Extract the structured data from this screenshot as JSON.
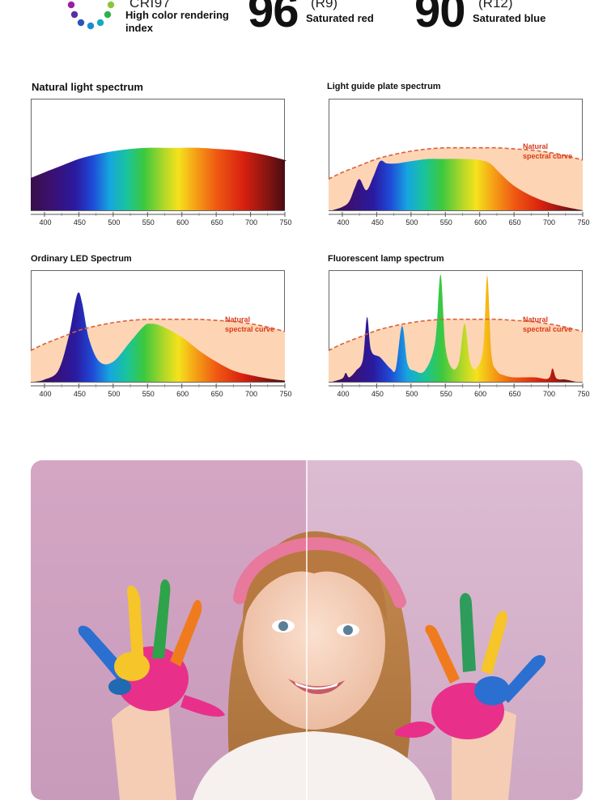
{
  "stats": {
    "cri": {
      "title": "CRI97",
      "label": "High color rendering index"
    },
    "r9": {
      "value": "96",
      "code": "(R9)",
      "label": "Saturated red"
    },
    "r12": {
      "value": "90",
      "code": "(R12)",
      "label": "Saturated blue"
    }
  },
  "colors": {
    "natural_fill": "#fdd5b4",
    "natural_curve": "#d9603a",
    "annotation": "#d93a1a",
    "photo_bg_left": "#d6a9c7",
    "photo_bg_right": "#d9b8cf"
  },
  "chart_data": [
    {
      "type": "area",
      "title": "Natural light spectrum",
      "x": [
        400,
        425,
        450,
        475,
        500,
        525,
        550,
        575,
        600,
        625,
        650,
        675,
        700,
        725,
        750
      ],
      "ylim": [
        0,
        1
      ],
      "xlim": [
        380,
        750
      ],
      "xticks": [
        400,
        450,
        500,
        550,
        600,
        650,
        700,
        750
      ],
      "series": [
        {
          "values": [
            0.34,
            0.4,
            0.46,
            0.5,
            0.53,
            0.55,
            0.56,
            0.56,
            0.56,
            0.56,
            0.55,
            0.54,
            0.52,
            0.49,
            0.45
          ]
        }
      ],
      "annotation": ""
    },
    {
      "type": "area",
      "title": "Light guide plate spectrum",
      "x": [
        385,
        400,
        410,
        418,
        425,
        435,
        445,
        455,
        465,
        480,
        500,
        525,
        550,
        575,
        600,
        615,
        630,
        650,
        675,
        700,
        725,
        750
      ],
      "ylim": [
        0,
        1
      ],
      "xlim": [
        380,
        750
      ],
      "xticks": [
        400,
        450,
        500,
        550,
        600,
        650,
        700,
        750
      ],
      "series": [
        {
          "values": [
            0.0,
            0.03,
            0.08,
            0.2,
            0.28,
            0.18,
            0.3,
            0.44,
            0.42,
            0.42,
            0.44,
            0.46,
            0.46,
            0.46,
            0.45,
            0.42,
            0.33,
            0.22,
            0.13,
            0.07,
            0.03,
            0.0
          ]
        }
      ],
      "natural_curve": [
        0.34,
        0.4,
        0.46,
        0.5,
        0.53,
        0.55,
        0.56,
        0.56,
        0.56,
        0.56,
        0.55,
        0.54,
        0.52,
        0.49,
        0.45
      ],
      "annotation": "Natural spectral curve"
    },
    {
      "type": "area",
      "title": "Ordinary LED Spectrum",
      "x": [
        385,
        400,
        420,
        435,
        445,
        450,
        455,
        465,
        480,
        500,
        525,
        545,
        555,
        570,
        600,
        625,
        650,
        675,
        700,
        725,
        750
      ],
      "ylim": [
        0,
        1
      ],
      "xlim": [
        380,
        750
      ],
      "xticks": [
        400,
        450,
        500,
        550,
        600,
        650,
        700,
        750
      ],
      "series": [
        {
          "values": [
            0.0,
            0.02,
            0.1,
            0.4,
            0.72,
            0.8,
            0.7,
            0.38,
            0.18,
            0.18,
            0.36,
            0.5,
            0.52,
            0.5,
            0.4,
            0.28,
            0.18,
            0.1,
            0.06,
            0.03,
            0.01
          ]
        }
      ],
      "natural_curve": [
        0.34,
        0.4,
        0.46,
        0.5,
        0.53,
        0.55,
        0.56,
        0.56,
        0.56,
        0.56,
        0.55,
        0.54,
        0.52,
        0.49,
        0.45
      ],
      "annotation": "Natural spectral curve"
    },
    {
      "type": "area",
      "title": "Fluorescent lamp spectrum",
      "x": [
        385,
        400,
        405,
        410,
        420,
        430,
        436,
        442,
        455,
        470,
        478,
        487,
        495,
        505,
        520,
        535,
        543,
        550,
        560,
        570,
        578,
        586,
        595,
        605,
        611,
        617,
        625,
        635,
        650,
        680,
        700,
        706,
        712,
        725,
        740
      ],
      "ylim": [
        0,
        1
      ],
      "xlim": [
        380,
        750
      ],
      "xticks": [
        400,
        450,
        500,
        550,
        600,
        650,
        700,
        750
      ],
      "series": [
        {
          "values": [
            0.0,
            0.03,
            0.08,
            0.04,
            0.1,
            0.2,
            0.58,
            0.28,
            0.22,
            0.12,
            0.12,
            0.5,
            0.16,
            0.1,
            0.1,
            0.35,
            0.96,
            0.32,
            0.12,
            0.18,
            0.52,
            0.18,
            0.12,
            0.3,
            0.95,
            0.25,
            0.1,
            0.06,
            0.04,
            0.04,
            0.03,
            0.12,
            0.03,
            0.02,
            0.0
          ]
        }
      ],
      "natural_curve": [
        0.34,
        0.4,
        0.46,
        0.5,
        0.53,
        0.55,
        0.56,
        0.56,
        0.56,
        0.56,
        0.55,
        0.54,
        0.52,
        0.49,
        0.45
      ],
      "annotation": "Natural spectral curve"
    }
  ]
}
